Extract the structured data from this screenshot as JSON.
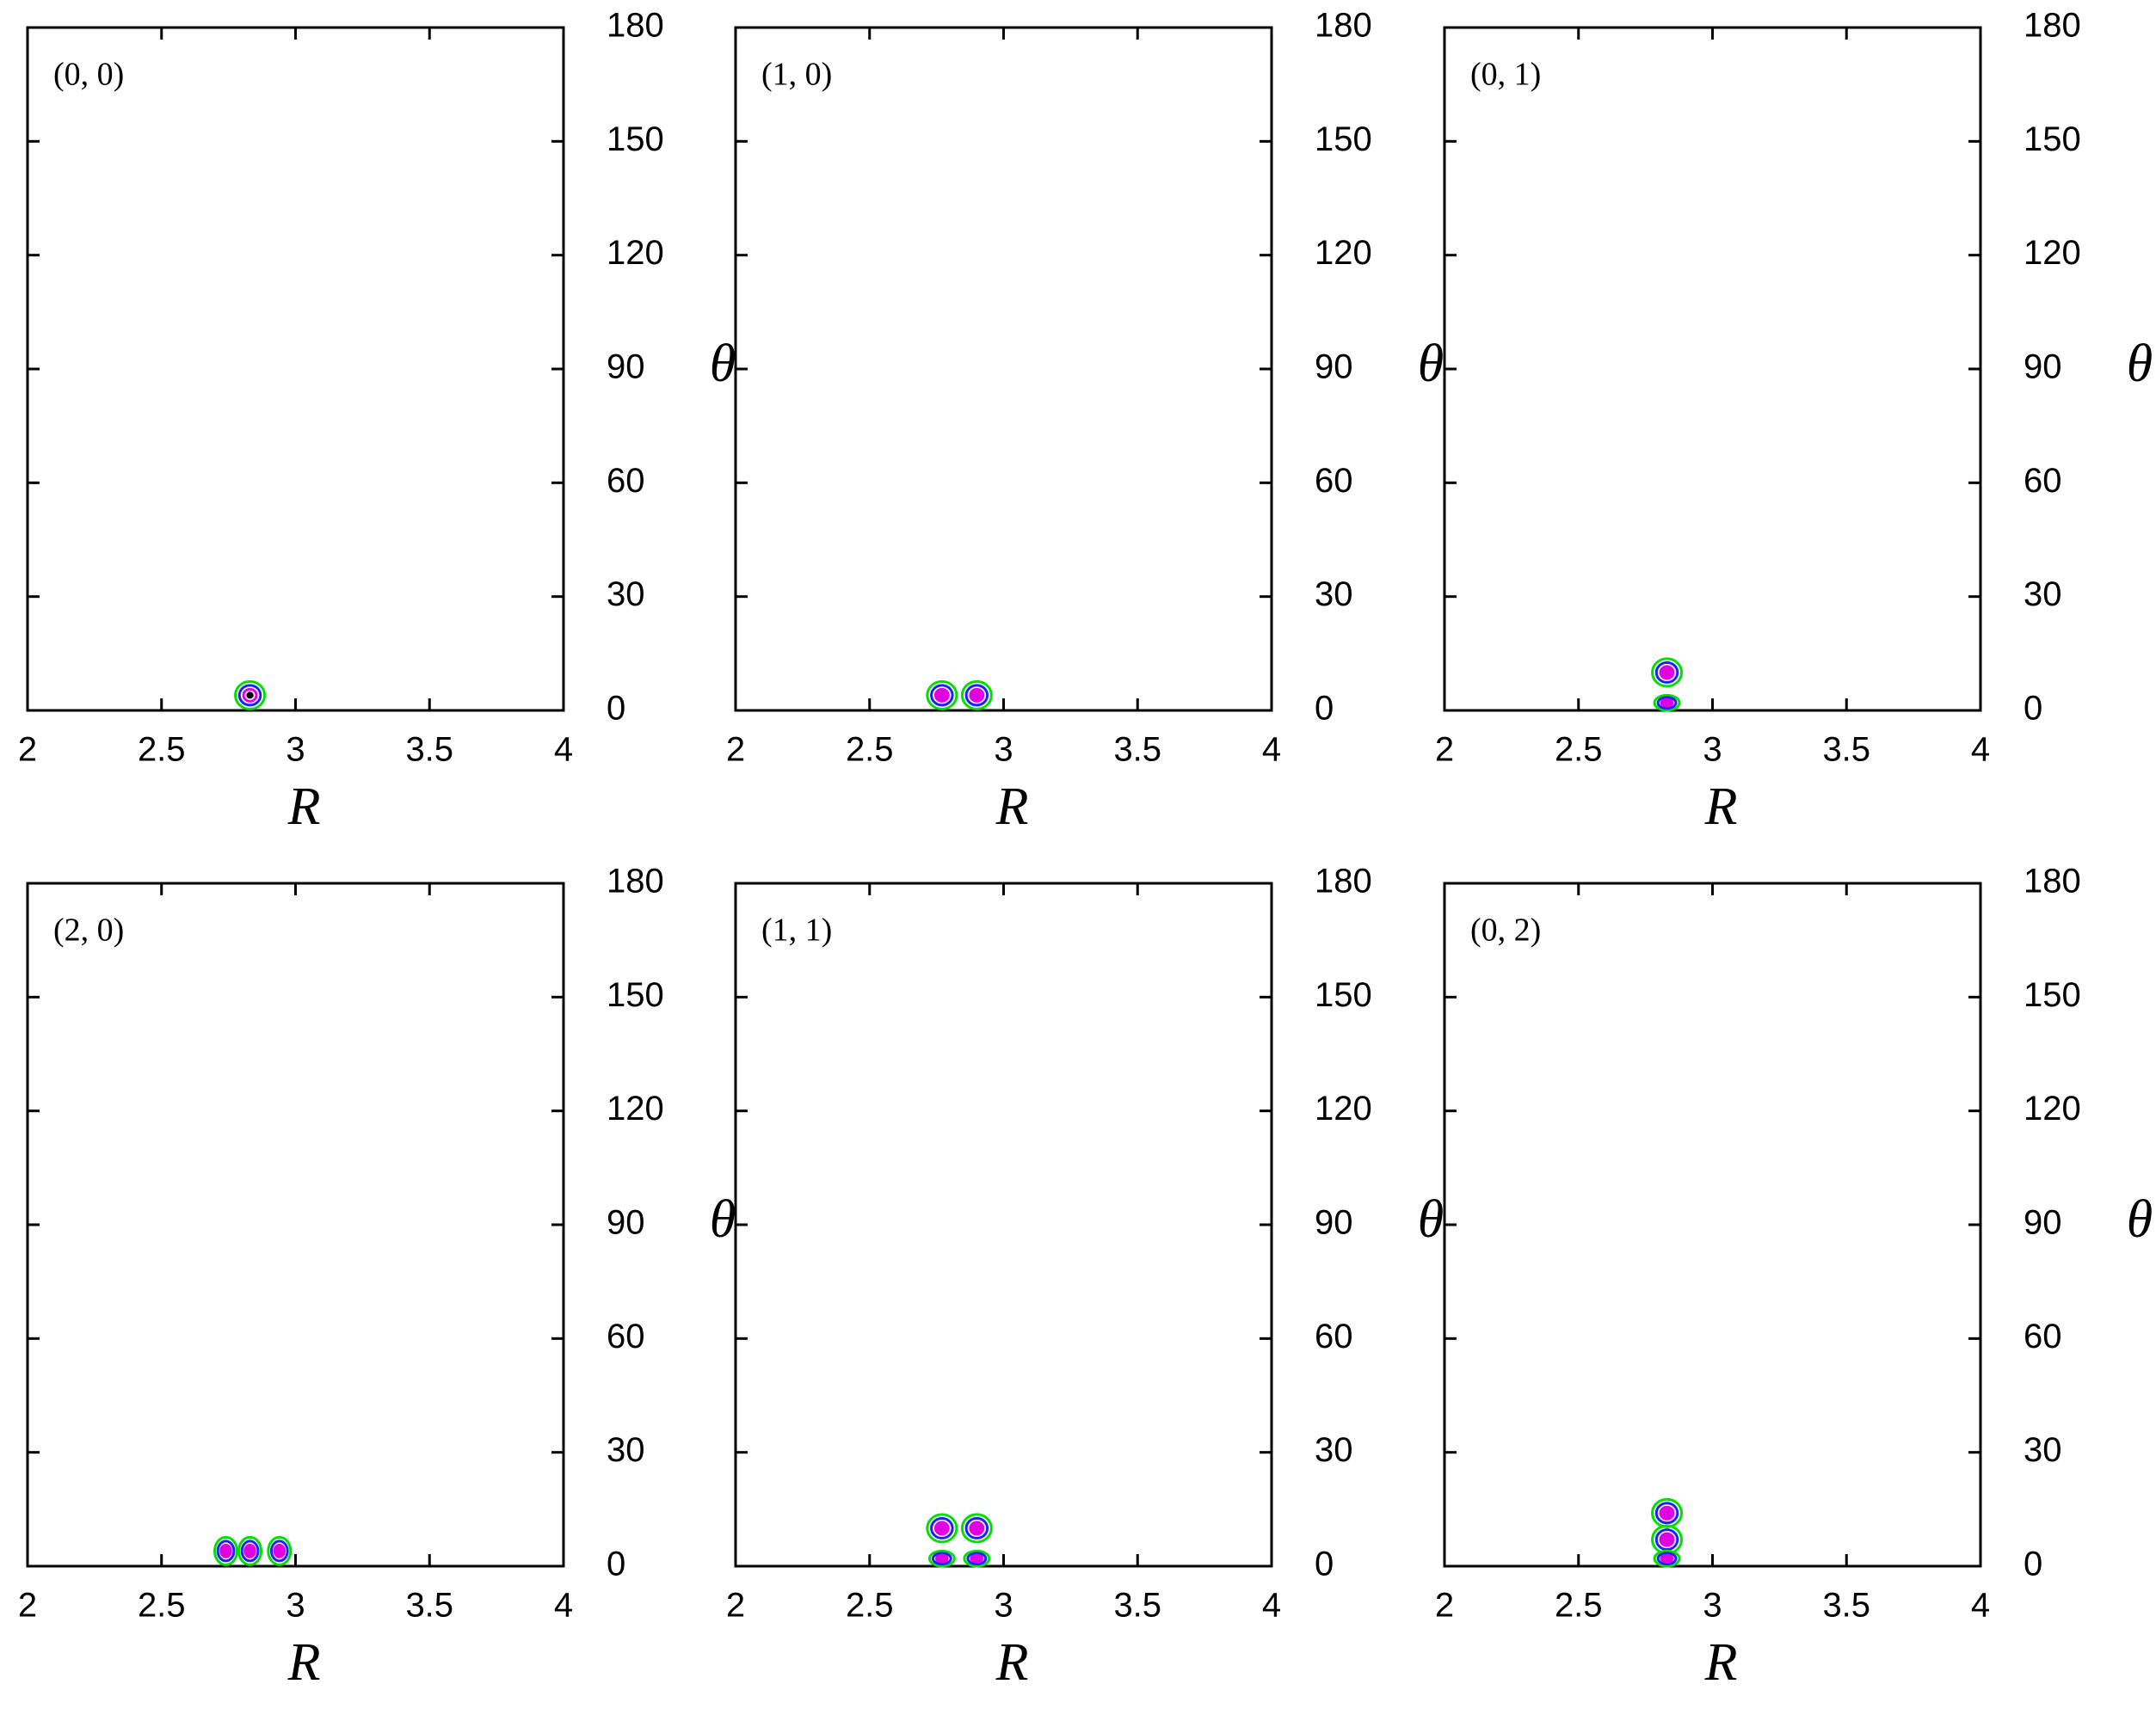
{
  "chart_data": [
    {
      "type": "contour",
      "title": "(0, 0)",
      "x_label": "R",
      "y_label": "θ",
      "xlim": [
        2,
        4
      ],
      "ylim": [
        0,
        180
      ],
      "xticks": [
        2,
        2.5,
        3,
        3.5,
        4
      ],
      "yticks": [
        0,
        30,
        60,
        90,
        120,
        150,
        180
      ],
      "level_colors": [
        "#00e000",
        "#2020ff",
        "#e000e0",
        "#000000"
      ],
      "x": [
        2.83
      ],
      "y": [
        4
      ]
    },
    {
      "type": "contour",
      "title": "(1, 0)",
      "x_label": "R",
      "y_label": "θ",
      "xlim": [
        2,
        4
      ],
      "ylim": [
        0,
        180
      ],
      "xticks": [
        2,
        2.5,
        3,
        3.5,
        4
      ],
      "yticks": [
        0,
        30,
        60,
        90,
        120,
        150,
        180
      ],
      "level_colors": [
        "#00e000",
        "#2020ff",
        "#e000e0"
      ],
      "x": [
        2.77,
        2.9
      ],
      "y": [
        4,
        4
      ]
    },
    {
      "type": "contour",
      "title": "(0, 1)",
      "x_label": "R",
      "y_label": "θ",
      "xlim": [
        2,
        4
      ],
      "ylim": [
        0,
        180
      ],
      "xticks": [
        2,
        2.5,
        3,
        3.5,
        4
      ],
      "yticks": [
        0,
        30,
        60,
        90,
        120,
        150,
        180
      ],
      "level_colors": [
        "#00e000",
        "#2020ff",
        "#e000e0"
      ],
      "x": [
        2.83,
        2.83
      ],
      "y": [
        10,
        2
      ]
    },
    {
      "type": "contour",
      "title": "(2, 0)",
      "x_label": "R",
      "y_label": "θ",
      "xlim": [
        2,
        4
      ],
      "ylim": [
        0,
        180
      ],
      "xticks": [
        2,
        2.5,
        3,
        3.5,
        4
      ],
      "yticks": [
        0,
        30,
        60,
        90,
        120,
        150,
        180
      ],
      "level_colors": [
        "#00e000",
        "#2020ff",
        "#e000e0"
      ],
      "x": [
        2.74,
        2.83,
        2.94
      ],
      "y": [
        4,
        4,
        4
      ]
    },
    {
      "type": "contour",
      "title": "(1, 1)",
      "x_label": "R",
      "y_label": "θ",
      "xlim": [
        2,
        4
      ],
      "ylim": [
        0,
        180
      ],
      "xticks": [
        2,
        2.5,
        3,
        3.5,
        4
      ],
      "yticks": [
        0,
        30,
        60,
        90,
        120,
        150,
        180
      ],
      "level_colors": [
        "#00e000",
        "#2020ff",
        "#e000e0"
      ],
      "x": [
        2.77,
        2.9,
        2.77,
        2.9
      ],
      "y": [
        10,
        10,
        2,
        2
      ]
    },
    {
      "type": "contour",
      "title": "(0, 2)",
      "x_label": "R",
      "y_label": "θ",
      "xlim": [
        2,
        4
      ],
      "ylim": [
        0,
        180
      ],
      "xticks": [
        2,
        2.5,
        3,
        3.5,
        4
      ],
      "yticks": [
        0,
        30,
        60,
        90,
        120,
        150,
        180
      ],
      "level_colors": [
        "#00e000",
        "#2020ff",
        "#e000e0"
      ],
      "x": [
        2.83,
        2.83,
        2.83
      ],
      "y": [
        14,
        7,
        2
      ]
    }
  ]
}
